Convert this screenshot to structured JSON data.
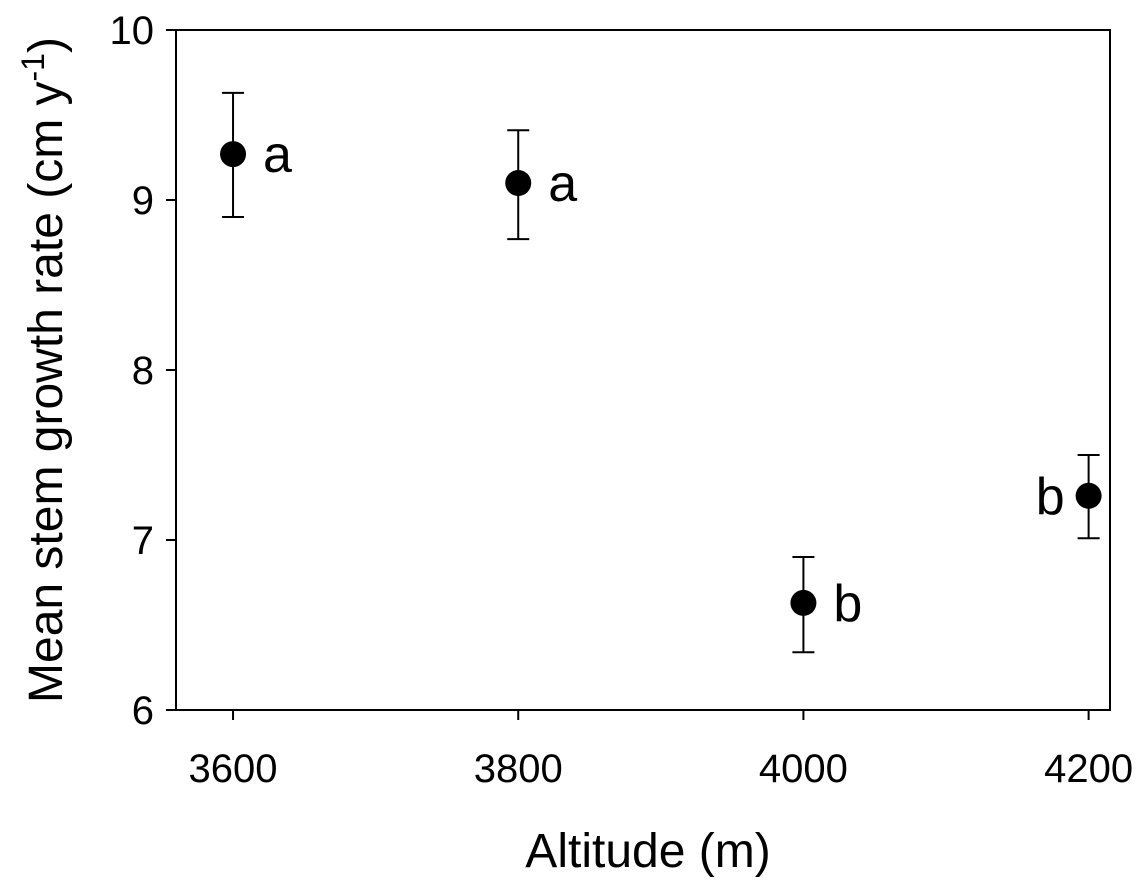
{
  "chart_data": {
    "type": "scatter",
    "title": "",
    "xlabel": "Altitude (m)",
    "ylabel": {
      "main": "Mean stem growth rate (cm y",
      "superscript": "-1",
      "close": ")"
    },
    "xlim": [
      3560,
      4215
    ],
    "ylim": [
      6,
      10
    ],
    "x_ticks": [
      "3600",
      "3800",
      "4000",
      "4200"
    ],
    "y_ticks": [
      "6",
      "7",
      "8",
      "9",
      "10"
    ],
    "grid": false,
    "legend": "none",
    "points": [
      {
        "x": 3600,
        "y": 9.27,
        "err_low": 8.9,
        "err_high": 9.63,
        "label": "a",
        "label_side": "right"
      },
      {
        "x": 3800,
        "y": 9.1,
        "err_low": 8.77,
        "err_high": 9.41,
        "label": "a",
        "label_side": "right"
      },
      {
        "x": 4000,
        "y": 6.63,
        "err_low": 6.34,
        "err_high": 6.9,
        "label": "b",
        "label_side": "right"
      },
      {
        "x": 4200,
        "y": 7.26,
        "err_low": 7.01,
        "err_high": 7.5,
        "label": "b",
        "label_side": "left"
      }
    ],
    "colors": {
      "marker": "#000000",
      "axis": "#000000"
    }
  }
}
